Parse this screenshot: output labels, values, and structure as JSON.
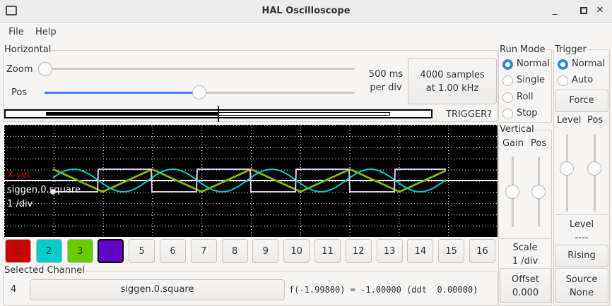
{
  "window": {
    "title": "HAL Oscilloscope"
  },
  "menu": [
    "File",
    "Help"
  ],
  "horizontal": {
    "label": "Horizontal",
    "zoom_label": "Zoom",
    "pos_label": "Pos",
    "zoom_value": 0,
    "pos_value": 0.5,
    "rate_line1": "500 ms",
    "rate_line2": "per div",
    "samples_line1": "4000 samples",
    "samples_line2": "at 1.00 kHz",
    "trigger_status": "TRIGGER?"
  },
  "run_mode": {
    "label": "Run Mode",
    "options": [
      "Normal",
      "Single",
      "Roll",
      "Stop"
    ],
    "selected": "Normal"
  },
  "trigger": {
    "label": "Trigger",
    "options": [
      "Normal",
      "Auto"
    ],
    "selected": "Normal",
    "force": "Force",
    "level_label": "Level",
    "pos_label": "Pos",
    "level_heading": "Level",
    "level_value": "----",
    "edge": "Rising",
    "source_line1": "Source",
    "source_line2": "None"
  },
  "vertical": {
    "label": "Vertical",
    "gain_label": "Gain",
    "pos_label": "Pos",
    "scale_label": "Scale",
    "scale_value": "1 /div",
    "offset_label": "Offset",
    "offset_value": "0.000"
  },
  "scope": {
    "overlay_labels": [
      {
        "text": "X-vel",
        "color": "#cc0000"
      },
      {
        "text": "siggen.0.square",
        "color": "#ffffff"
      },
      {
        "text": "1 /div",
        "color": "#ffffff"
      }
    ]
  },
  "channels": [
    {
      "label": "1",
      "color": "#cc0000"
    },
    {
      "label": "2",
      "color": "#00cccc"
    },
    {
      "label": "3",
      "color": "#66cc00"
    },
    {
      "label": "4",
      "color": "#6600cc",
      "selected": true
    },
    {
      "label": "5"
    },
    {
      "label": "6"
    },
    {
      "label": "7"
    },
    {
      "label": "8"
    },
    {
      "label": "9"
    },
    {
      "label": "10"
    },
    {
      "label": "11"
    },
    {
      "label": "12"
    },
    {
      "label": "13"
    },
    {
      "label": "14"
    },
    {
      "label": "15"
    },
    {
      "label": "16"
    }
  ],
  "trace_colors": {
    "ch1": "#cc0000",
    "ch2": "#00cccc",
    "ch3": "#66cc00",
    "ch4": "#e0c8f0"
  },
  "selected_channel": {
    "label": "Selected Channel",
    "number": "4",
    "name": "siggen.0.square",
    "readout": "f(-1.99800) = -1.00000 (ddt  0.00000)"
  }
}
